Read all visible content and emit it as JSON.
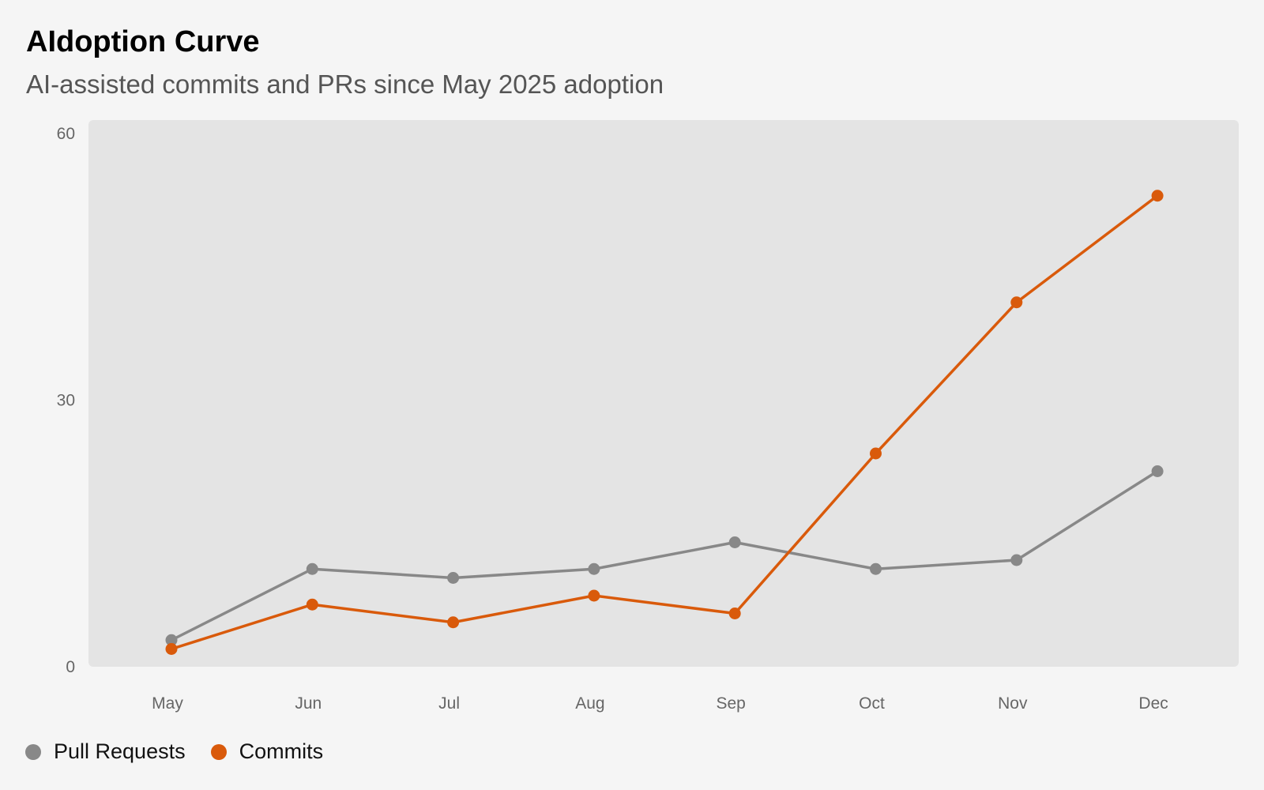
{
  "chart_data": {
    "type": "line",
    "title": "AIdoption Curve",
    "subtitle": "AI-assisted commits and PRs since May 2025 adoption",
    "categories": [
      "May",
      "Jun",
      "Jul",
      "Aug",
      "Sep",
      "Oct",
      "Nov",
      "Dec"
    ],
    "yticks": [
      0,
      30,
      60
    ],
    "ylim": [
      0,
      60
    ],
    "xlabel": "",
    "ylabel": "",
    "grid": false,
    "legend_position": "bottom-left",
    "series": [
      {
        "name": "Pull Requests",
        "color": "#888888",
        "values": [
          3,
          11,
          10,
          11,
          14,
          11,
          12,
          22
        ]
      },
      {
        "name": "Commits",
        "color": "#d95a0b",
        "values": [
          2,
          7,
          5,
          8,
          6,
          24,
          41,
          53
        ]
      }
    ]
  }
}
